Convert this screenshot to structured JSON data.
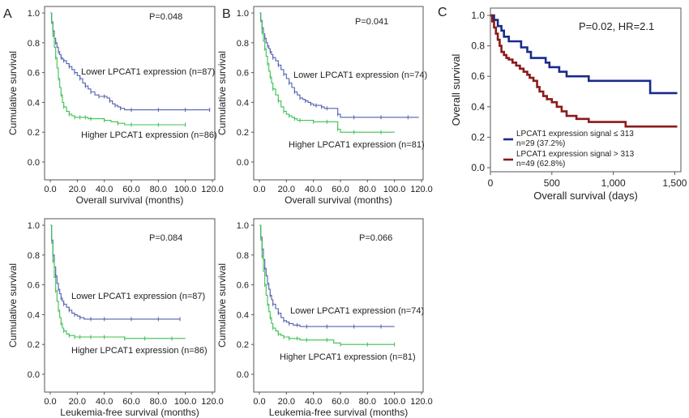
{
  "panel_labels": [
    "A",
    "B",
    "C"
  ],
  "chart_data": [
    {
      "panel": "A",
      "type": "line",
      "p_text": "P=0.048",
      "xlabel": "Overall survival (months)",
      "ylabel": "Cumulative survival",
      "xlim": [
        0,
        120
      ],
      "ylim": [
        0,
        1
      ],
      "xticks": [
        "0.0",
        "20.0",
        "40.0",
        "60.0",
        "80.0",
        "100.0",
        "120.0"
      ],
      "yticks": [
        "0.0",
        "0.2",
        "0.4",
        "0.6",
        "0.8",
        "1.0"
      ],
      "colors": {
        "lower": "#5060b0",
        "higher": "#3cc050"
      },
      "series": [
        {
          "key": "lower",
          "label": "Lower LPCAT1 expression (n=87)",
          "x": [
            0,
            1,
            2,
            3,
            4,
            5,
            6,
            7,
            8,
            9,
            10,
            12,
            14,
            16,
            18,
            20,
            22,
            24,
            26,
            28,
            30,
            33,
            36,
            38,
            40,
            42,
            44,
            46,
            48,
            50,
            52,
            55,
            60,
            70,
            80,
            90,
            100,
            110,
            118
          ],
          "y": [
            1.0,
            0.94,
            0.88,
            0.83,
            0.8,
            0.77,
            0.74,
            0.72,
            0.7,
            0.69,
            0.68,
            0.66,
            0.64,
            0.62,
            0.6,
            0.58,
            0.56,
            0.53,
            0.51,
            0.49,
            0.47,
            0.45,
            0.44,
            0.44,
            0.44,
            0.43,
            0.41,
            0.39,
            0.38,
            0.37,
            0.36,
            0.35,
            0.35,
            0.35,
            0.35,
            0.35,
            0.35,
            0.35,
            0.35
          ]
        },
        {
          "key": "higher",
          "label": "Higher LPCAT1 expression (n=86)",
          "x": [
            0,
            1,
            2,
            3,
            4,
            5,
            6,
            7,
            8,
            9,
            10,
            12,
            14,
            16,
            18,
            20,
            22,
            24,
            26,
            28,
            30,
            35,
            40,
            45,
            50,
            55,
            60,
            70,
            80,
            90,
            100
          ],
          "y": [
            1.0,
            0.93,
            0.85,
            0.77,
            0.7,
            0.63,
            0.56,
            0.5,
            0.45,
            0.4,
            0.37,
            0.34,
            0.32,
            0.31,
            0.3,
            0.3,
            0.3,
            0.3,
            0.3,
            0.29,
            0.29,
            0.29,
            0.28,
            0.27,
            0.26,
            0.25,
            0.25,
            0.25,
            0.25,
            0.25,
            0.25
          ]
        }
      ]
    },
    {
      "panel": "B",
      "type": "line",
      "p_text": "P=0.041",
      "xlabel": "Overall survival (months)",
      "ylabel": "Cumulative survival",
      "xlim": [
        0,
        120
      ],
      "ylim": [
        0,
        1
      ],
      "xticks": [
        "0.0",
        "20.0",
        "40.0",
        "60.0",
        "80.0",
        "100.0",
        "120.0"
      ],
      "yticks": [
        "0.0",
        "0.2",
        "0.4",
        "0.6",
        "0.8",
        "1.0"
      ],
      "colors": {
        "lower": "#5060b0",
        "higher": "#3cc050"
      },
      "series": [
        {
          "key": "lower",
          "label": "Lower LPCAT1 expression (n=74)",
          "x": [
            0,
            1,
            2,
            3,
            4,
            5,
            6,
            7,
            8,
            9,
            10,
            12,
            14,
            16,
            18,
            20,
            22,
            24,
            26,
            28,
            30,
            32,
            34,
            36,
            38,
            40,
            42,
            44,
            46,
            48,
            50,
            55,
            58,
            60,
            70,
            80,
            90,
            100,
            110,
            118
          ],
          "y": [
            1.0,
            0.95,
            0.9,
            0.86,
            0.83,
            0.8,
            0.78,
            0.76,
            0.74,
            0.72,
            0.7,
            0.68,
            0.65,
            0.62,
            0.59,
            0.56,
            0.53,
            0.5,
            0.47,
            0.45,
            0.43,
            0.42,
            0.41,
            0.4,
            0.39,
            0.38,
            0.38,
            0.38,
            0.37,
            0.36,
            0.36,
            0.36,
            0.32,
            0.3,
            0.3,
            0.3,
            0.3,
            0.3,
            0.3,
            0.3
          ]
        },
        {
          "key": "higher",
          "label": "Higher LPCAT1 expression (n=81)",
          "x": [
            0,
            1,
            2,
            3,
            4,
            5,
            6,
            7,
            8,
            9,
            10,
            12,
            14,
            16,
            18,
            20,
            22,
            24,
            26,
            28,
            30,
            35,
            40,
            45,
            50,
            55,
            58,
            60,
            70,
            80,
            90,
            100
          ],
          "y": [
            1.0,
            0.94,
            0.87,
            0.81,
            0.76,
            0.71,
            0.66,
            0.61,
            0.57,
            0.53,
            0.49,
            0.45,
            0.41,
            0.37,
            0.34,
            0.32,
            0.31,
            0.3,
            0.29,
            0.28,
            0.28,
            0.28,
            0.27,
            0.27,
            0.27,
            0.27,
            0.22,
            0.2,
            0.2,
            0.2,
            0.2,
            0.2
          ]
        }
      ]
    },
    {
      "panel": "C",
      "type": "line",
      "p_text": "P=0.02, HR=2.1",
      "xlabel": "Overall survival (days)",
      "ylabel": "Overall survival",
      "xlim": [
        0,
        1550
      ],
      "ylim": [
        -0.05,
        1.0
      ],
      "xticks": [
        "0",
        "500",
        "1,000",
        "1,500"
      ],
      "xtick_values": [
        0,
        500,
        1000,
        1500
      ],
      "yticks": [
        "0.0",
        "0.2",
        "0.4",
        "0.6",
        "0.8",
        "1.0"
      ],
      "colors": {
        "low": "#1a2a8c",
        "high": "#8b1a1a"
      },
      "series": [
        {
          "key": "low",
          "label": "LPCAT1 expression signal ≤ 313",
          "label2": "n=29 (37.2%)",
          "x": [
            0,
            30,
            60,
            90,
            110,
            150,
            200,
            250,
            300,
            330,
            400,
            450,
            480,
            520,
            560,
            620,
            700,
            800,
            900,
            1000,
            1100,
            1200,
            1280,
            1300,
            1400,
            1520
          ],
          "y": [
            1.0,
            0.97,
            0.93,
            0.9,
            0.86,
            0.83,
            0.83,
            0.79,
            0.76,
            0.72,
            0.72,
            0.69,
            0.66,
            0.66,
            0.63,
            0.6,
            0.6,
            0.57,
            0.57,
            0.57,
            0.57,
            0.57,
            0.57,
            0.49,
            0.49,
            0.49
          ]
        },
        {
          "key": "high",
          "label": "LPCAT1 expression signal > 313",
          "label2": "n=49 (62.8%)",
          "x": [
            0,
            15,
            30,
            45,
            60,
            75,
            90,
            110,
            130,
            150,
            180,
            210,
            240,
            270,
            300,
            320,
            350,
            380,
            400,
            430,
            460,
            500,
            540,
            580,
            620,
            700,
            800,
            900,
            1000,
            1100,
            1200,
            1300,
            1400,
            1520
          ],
          "y": [
            1.0,
            0.96,
            0.92,
            0.88,
            0.84,
            0.8,
            0.76,
            0.74,
            0.72,
            0.71,
            0.69,
            0.67,
            0.65,
            0.63,
            0.61,
            0.59,
            0.57,
            0.53,
            0.5,
            0.47,
            0.45,
            0.43,
            0.4,
            0.37,
            0.34,
            0.32,
            0.3,
            0.3,
            0.3,
            0.27,
            0.27,
            0.27,
            0.27,
            0.27
          ]
        }
      ]
    },
    {
      "panel": "A-lower",
      "type": "line",
      "p_text": "P=0.084",
      "xlabel": "Leukemia-free survival (months)",
      "ylabel": "Cumulative survival",
      "xlim": [
        0,
        120
      ],
      "ylim": [
        0,
        1
      ],
      "xticks": [
        "0.0",
        "20.0",
        "40.0",
        "60.0",
        "80.0",
        "100.0",
        "120.0"
      ],
      "yticks": [
        "0.0",
        "0.2",
        "0.4",
        "0.6",
        "0.8",
        "1.0"
      ],
      "colors": {
        "lower": "#5060b0",
        "higher": "#3cc050"
      },
      "series": [
        {
          "key": "lower",
          "label": "Lower LPCAT1 expression (n=87)",
          "x": [
            0,
            1,
            2,
            3,
            4,
            5,
            6,
            7,
            8,
            9,
            10,
            12,
            14,
            16,
            18,
            20,
            22,
            25,
            30,
            35,
            40,
            50,
            60,
            70,
            80,
            90,
            96
          ],
          "y": [
            1.0,
            0.9,
            0.8,
            0.72,
            0.66,
            0.61,
            0.57,
            0.54,
            0.51,
            0.49,
            0.47,
            0.45,
            0.43,
            0.41,
            0.4,
            0.39,
            0.38,
            0.37,
            0.37,
            0.37,
            0.37,
            0.37,
            0.37,
            0.37,
            0.37,
            0.37,
            0.37
          ]
        },
        {
          "key": "higher",
          "label": "Higher LPCAT1 expression (n=86)",
          "x": [
            0,
            1,
            2,
            3,
            4,
            5,
            6,
            7,
            8,
            9,
            10,
            12,
            14,
            16,
            18,
            20,
            22,
            25,
            30,
            35,
            40,
            50,
            55,
            60,
            70,
            80,
            90,
            100
          ],
          "y": [
            1.0,
            0.88,
            0.76,
            0.65,
            0.56,
            0.49,
            0.43,
            0.38,
            0.34,
            0.31,
            0.29,
            0.27,
            0.26,
            0.26,
            0.25,
            0.25,
            0.25,
            0.25,
            0.25,
            0.25,
            0.25,
            0.25,
            0.24,
            0.24,
            0.24,
            0.24,
            0.24,
            0.24
          ]
        }
      ]
    },
    {
      "panel": "B-lower",
      "type": "line",
      "p_text": "P=0.066",
      "xlabel": "Leukemia-free survival (months)",
      "ylabel": "Cumulative survival",
      "xlim": [
        0,
        120
      ],
      "ylim": [
        0,
        1
      ],
      "xticks": [
        "0.0",
        "20.0",
        "40.0",
        "60.0",
        "80.0",
        "100.0",
        "120.0"
      ],
      "yticks": [
        "0.0",
        "0.2",
        "0.4",
        "0.6",
        "0.8",
        "1.0"
      ],
      "colors": {
        "lower": "#5060b0",
        "higher": "#3cc050"
      },
      "series": [
        {
          "key": "lower",
          "label": "Lower LPCAT1 expression (n=74)",
          "x": [
            0,
            1,
            2,
            3,
            4,
            5,
            6,
            7,
            8,
            9,
            10,
            12,
            14,
            16,
            18,
            20,
            22,
            25,
            28,
            30,
            35,
            40,
            50,
            60,
            70,
            80,
            90,
            100
          ],
          "y": [
            1.0,
            0.92,
            0.84,
            0.77,
            0.71,
            0.66,
            0.61,
            0.57,
            0.53,
            0.5,
            0.47,
            0.44,
            0.41,
            0.38,
            0.36,
            0.35,
            0.34,
            0.33,
            0.33,
            0.32,
            0.32,
            0.32,
            0.32,
            0.32,
            0.32,
            0.32,
            0.32,
            0.32
          ]
        },
        {
          "key": "higher",
          "label": "Higher LPCAT1 expression (n=81)",
          "x": [
            0,
            1,
            2,
            3,
            4,
            5,
            6,
            7,
            8,
            9,
            10,
            12,
            14,
            16,
            18,
            20,
            22,
            25,
            28,
            30,
            35,
            40,
            50,
            55,
            60,
            70,
            80,
            90,
            100
          ],
          "y": [
            1.0,
            0.9,
            0.79,
            0.69,
            0.6,
            0.53,
            0.47,
            0.42,
            0.38,
            0.34,
            0.31,
            0.29,
            0.27,
            0.26,
            0.25,
            0.25,
            0.24,
            0.24,
            0.24,
            0.23,
            0.23,
            0.23,
            0.23,
            0.21,
            0.2,
            0.2,
            0.2,
            0.2,
            0.2
          ]
        }
      ]
    }
  ]
}
